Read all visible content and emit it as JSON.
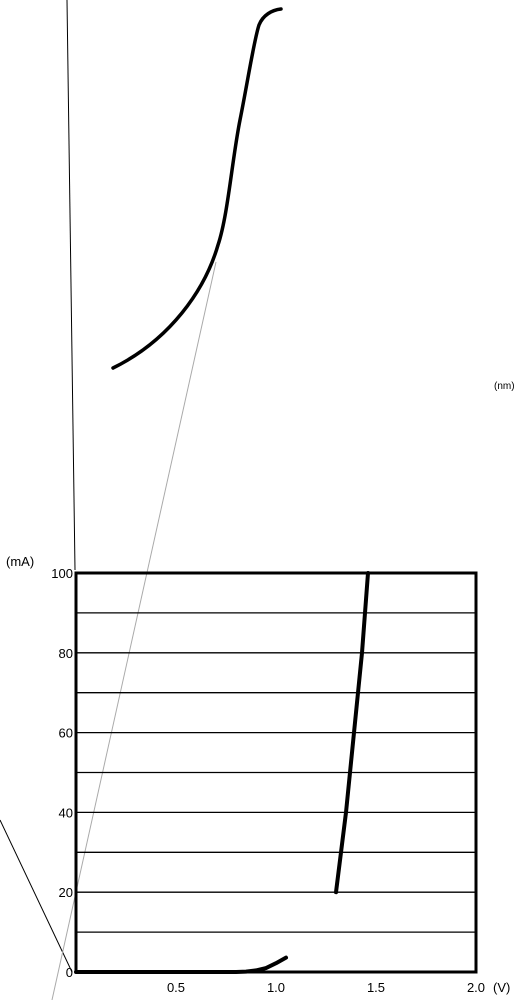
{
  "chart_data": {
    "type": "line",
    "x_unit_label": "(V)",
    "y_unit_label": "(mA)",
    "x_ticks": [
      {
        "value": 0.5,
        "label": "0.5"
      },
      {
        "value": 1.0,
        "label": "1.0"
      },
      {
        "value": 1.5,
        "label": "1.5"
      },
      {
        "value": 2.0,
        "label": "2.0"
      }
    ],
    "y_ticks": [
      {
        "value": 0,
        "label": "0"
      },
      {
        "value": 20,
        "label": "20"
      },
      {
        "value": 40,
        "label": "40"
      },
      {
        "value": 60,
        "label": "60"
      },
      {
        "value": 80,
        "label": "80"
      },
      {
        "value": 100,
        "label": "100"
      }
    ],
    "xlim": [
      0,
      2.0
    ],
    "ylim": [
      0,
      100
    ],
    "grid_y_step": 10,
    "series": [
      {
        "values_xy": [
          [
            1.3,
            20
          ],
          [
            1.35,
            40
          ],
          [
            1.39,
            60
          ],
          [
            1.43,
            80
          ],
          [
            1.46,
            100
          ]
        ]
      },
      {
        "values_xy": [
          [
            0,
            0
          ],
          [
            0.8,
            0
          ],
          [
            0.85,
            0.1
          ],
          [
            0.9,
            0.4
          ],
          [
            0.95,
            1.0
          ],
          [
            1.0,
            2.2
          ],
          [
            1.05,
            3.6
          ]
        ]
      }
    ]
  },
  "top_unit_label": "(nm)"
}
